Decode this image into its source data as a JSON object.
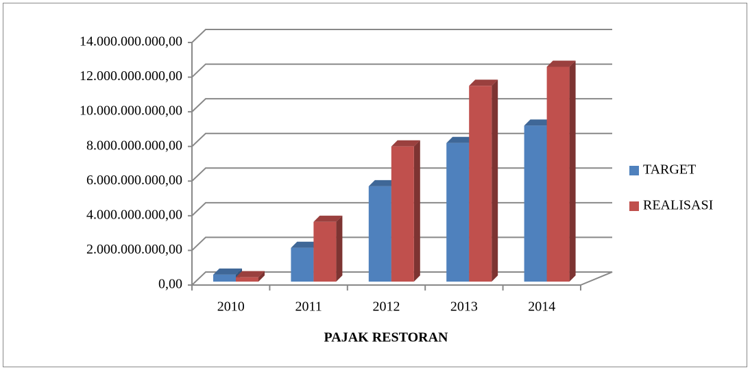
{
  "chart_data": {
    "type": "bar3d",
    "x_label": "PAJAK RESTORAN",
    "categories": [
      "2010",
      "2011",
      "2012",
      "2013",
      "2014"
    ],
    "series": [
      {
        "name": "TARGET",
        "color": "#4f81bd",
        "values": [
          400000000,
          1950000000,
          5500000000,
          8000000000,
          9000000000
        ]
      },
      {
        "name": "REALISASI",
        "color": "#c0504d",
        "values": [
          250000000,
          3450000000,
          7800000000,
          11300000000,
          12400000000
        ]
      }
    ],
    "ylim": [
      0,
      14000000000
    ],
    "yticks": [
      {
        "value": 0,
        "label": "0,00"
      },
      {
        "value": 2000000000,
        "label": "2.000.000.000,00"
      },
      {
        "value": 4000000000,
        "label": "4.000.000.000,00"
      },
      {
        "value": 6000000000,
        "label": "6.000.000.000,00"
      },
      {
        "value": 8000000000,
        "label": "8.000.000.000,00"
      },
      {
        "value": 10000000000,
        "label": "10.000.000.000,00"
      },
      {
        "value": 12000000000,
        "label": "12.000.000.000,00"
      },
      {
        "value": 14000000000,
        "label": "14.000.000.000,00"
      }
    ],
    "grid": true,
    "legend": "right"
  }
}
